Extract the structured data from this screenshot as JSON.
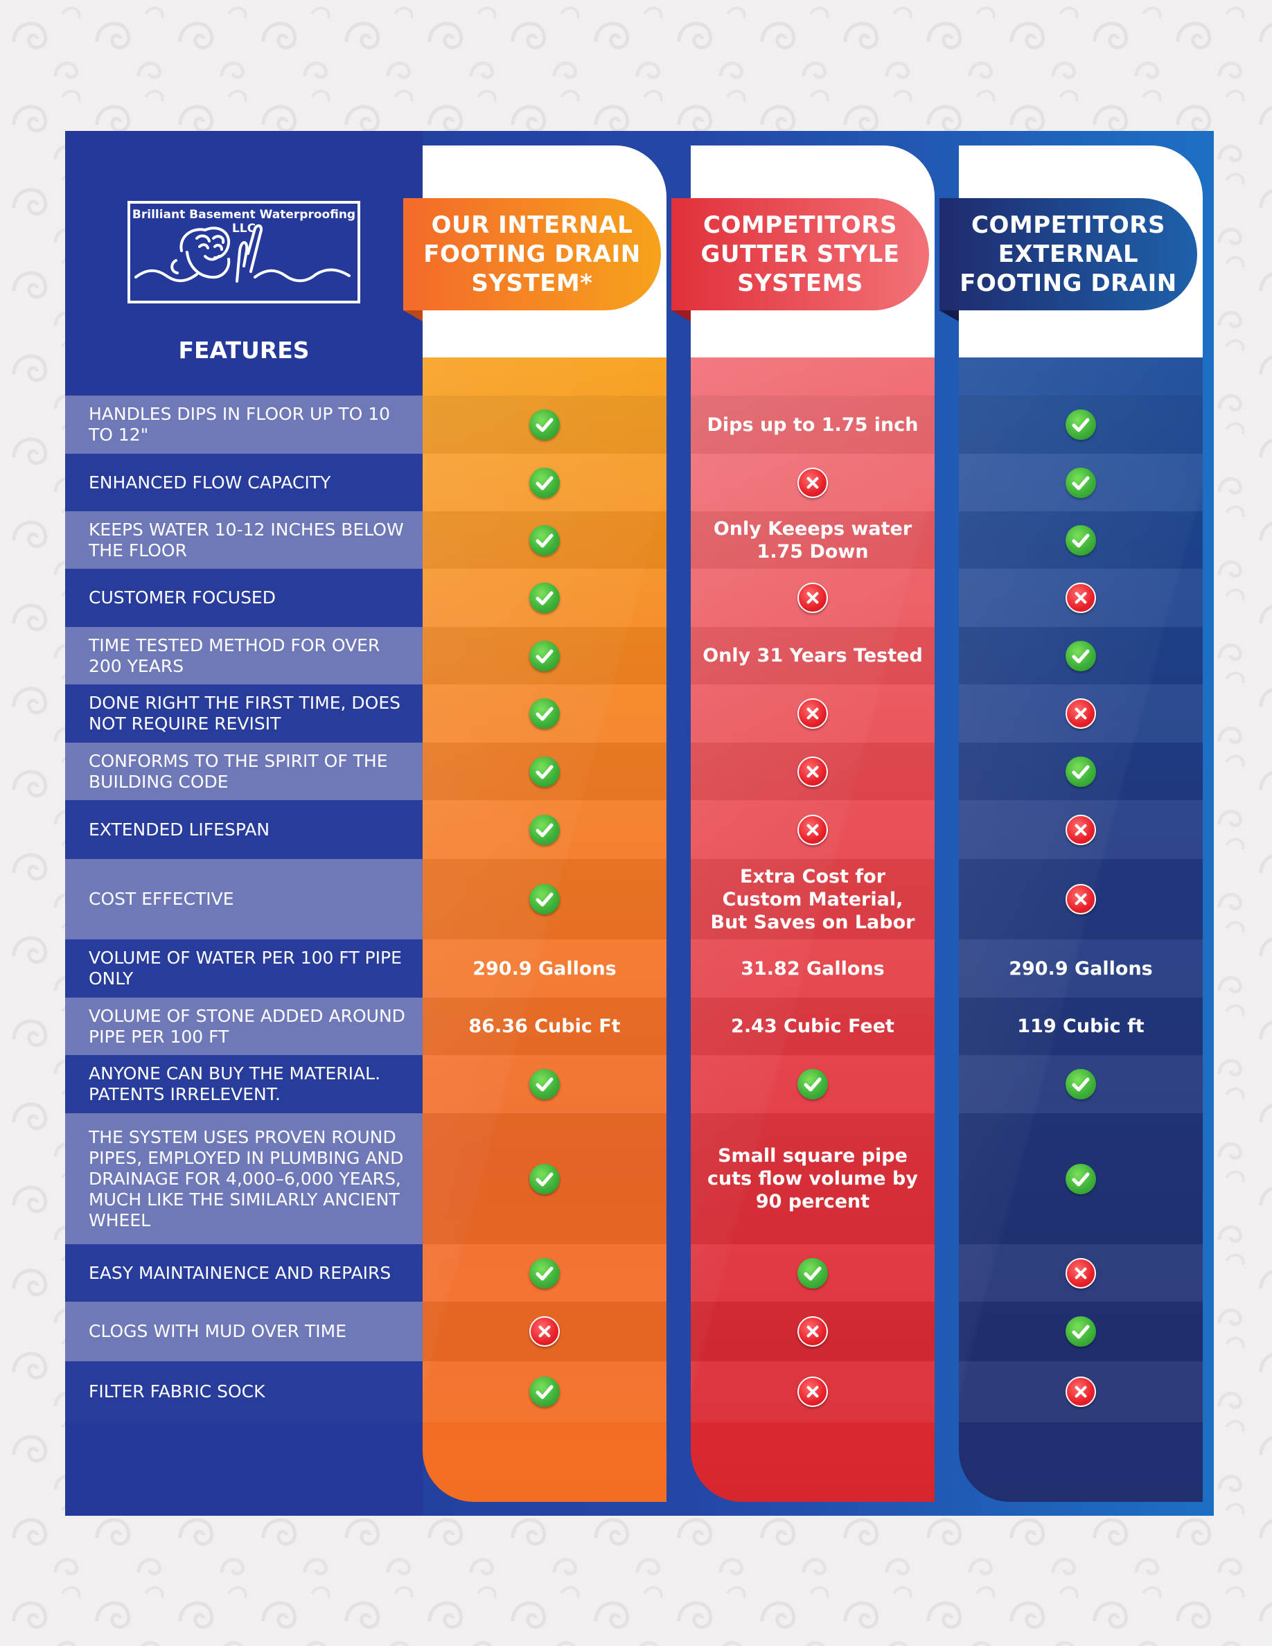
{
  "brand": {
    "name": "Brilliant Basement Waterproofing LLC"
  },
  "features_title": "FEATURES",
  "columns": {
    "internal": "OUR INTERNAL FOOTING DRAIN SYSTEM*",
    "gutter": "COMPETITORS GUTTER STYLE SYSTEMS",
    "external": "COMPETITORS EXTERNAL FOOTING DRAIN"
  },
  "colors": {
    "panel": "#24399a",
    "internal": "#f57f24",
    "gutter": "#e1303a",
    "external": "#212e70",
    "check": "#3fb23a",
    "cross": "#e8202a"
  },
  "rows": [
    {
      "feature": "HANDLES DIPS IN FLOOR UP TO 10 TO 12\"",
      "internal": "check",
      "gutter": "Dips up to 1.75 inch",
      "external": "check"
    },
    {
      "feature": "ENHANCED FLOW CAPACITY",
      "internal": "check",
      "gutter": "cross",
      "external": "check"
    },
    {
      "feature": "KEEPS WATER 10-12 INCHES BELOW THE FLOOR",
      "internal": "check",
      "gutter": "Only Keeeps water 1.75 Down",
      "external": "check"
    },
    {
      "feature": "CUSTOMER FOCUSED",
      "internal": "check",
      "gutter": "cross",
      "external": "cross"
    },
    {
      "feature": "TIME TESTED METHOD FOR OVER 200 YEARS",
      "internal": "check",
      "gutter": "Only 31 Years Tested",
      "external": "check"
    },
    {
      "feature": "DONE RIGHT THE FIRST TIME, DOES NOT REQUIRE REVISIT",
      "internal": "check",
      "gutter": "cross",
      "external": "cross"
    },
    {
      "feature": "CONFORMS TO THE SPIRIT OF THE BUILDING CODE",
      "internal": "check",
      "gutter": "cross",
      "external": "check"
    },
    {
      "feature": "EXTENDED LIFESPAN",
      "internal": "check",
      "gutter": "cross",
      "external": "cross"
    },
    {
      "feature": "COST EFFECTIVE",
      "internal": "check",
      "gutter": "Extra Cost for Custom Material, But Saves on Labor",
      "external": "cross"
    },
    {
      "feature": "VOLUME OF WATER PER 100 FT PIPE ONLY",
      "internal": "290.9 Gallons",
      "gutter": "31.82 Gallons",
      "external": "290.9 Gallons"
    },
    {
      "feature": "VOLUME OF STONE ADDED AROUND PIPE PER 100 FT",
      "internal": "86.36 Cubic Ft",
      "gutter": "2.43 Cubic Feet",
      "external": "119 Cubic ft"
    },
    {
      "feature": "ANYONE CAN BUY THE MATERIAL. PATENTS IRRELEVENT.",
      "internal": "check",
      "gutter": "check",
      "external": "check"
    },
    {
      "feature": "THE SYSTEM USES PROVEN ROUND PIPES, EMPLOYED IN PLUMBING AND DRAINAGE FOR 4,000–6,000 YEARS, MUCH LIKE THE SIMILARLY ANCIENT WHEEL",
      "internal": "check",
      "gutter": "Small square pipe cuts flow volume by 90 percent",
      "external": "check"
    },
    {
      "feature": "EASY MAINTAINENCE AND REPAIRS",
      "internal": "check",
      "gutter": "check",
      "external": "cross"
    },
    {
      "feature": "CLOGS WITH MUD OVER TIME",
      "internal": "cross",
      "gutter": "cross",
      "external": "check"
    },
    {
      "feature": "FILTER FABRIC SOCK",
      "internal": "check",
      "gutter": "cross",
      "external": "cross"
    }
  ]
}
